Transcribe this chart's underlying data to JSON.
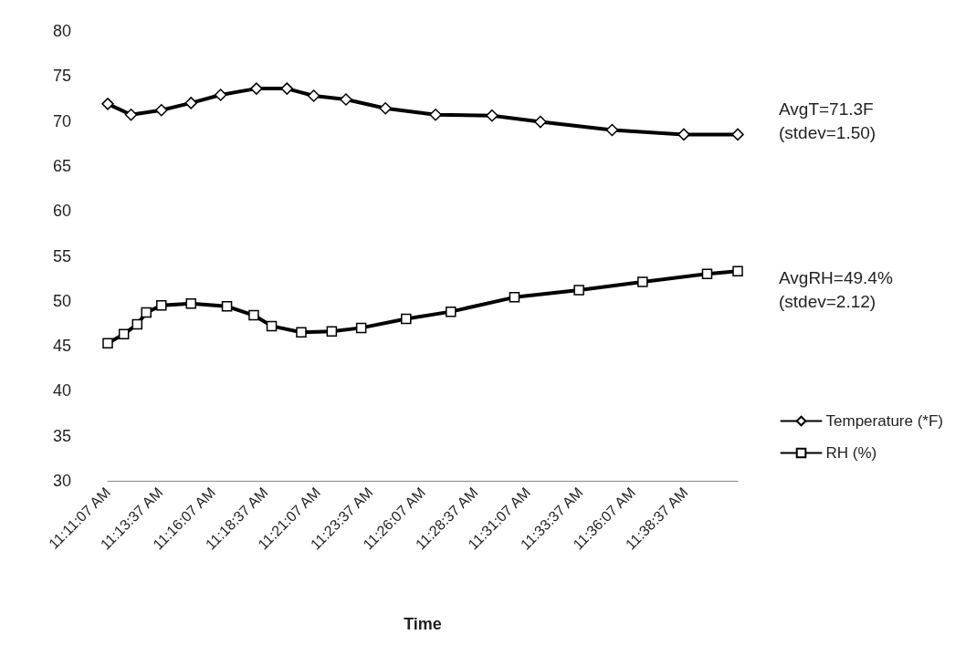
{
  "chart_data": {
    "type": "line",
    "xlabel": "Time",
    "xlim": [
      11.1853,
      11.6853
    ],
    "xticks": [
      {
        "value": 11.1853,
        "label": "11:11:07 AM"
      },
      {
        "value": 11.2269,
        "label": "11:13:37 AM"
      },
      {
        "value": 11.2686,
        "label": "11:16:07 AM"
      },
      {
        "value": 11.3103,
        "label": "11:18:37 AM"
      },
      {
        "value": 11.3519,
        "label": "11:21:07 AM"
      },
      {
        "value": 11.3936,
        "label": "11:23:37 AM"
      },
      {
        "value": 11.4353,
        "label": "11:26:07 AM"
      },
      {
        "value": 11.4769,
        "label": "11:28:37 AM"
      },
      {
        "value": 11.5186,
        "label": "11:31:07 AM"
      },
      {
        "value": 11.5603,
        "label": "11:33:37 AM"
      },
      {
        "value": 11.6019,
        "label": "11:36:07 AM"
      },
      {
        "value": 11.6436,
        "label": "11:38:37 AM"
      }
    ],
    "ylim": [
      30,
      80
    ],
    "yticks": [
      30,
      35,
      40,
      45,
      50,
      55,
      60,
      65,
      70,
      75,
      80
    ],
    "grid": false,
    "legend": "right",
    "line_style": "solid",
    "series": [
      {
        "name": "Temperature (*F)",
        "color": "#000000",
        "marker": "diamond",
        "x": [
          11.1853,
          11.2038,
          11.2279,
          11.2514,
          11.2749,
          11.3033,
          11.3275,
          11.3488,
          11.3744,
          11.4057,
          11.4455,
          11.4903,
          11.5287,
          11.5856,
          11.6425,
          11.6853
        ],
        "values": [
          71.9,
          70.7,
          71.2,
          72.0,
          72.9,
          73.6,
          73.6,
          72.8,
          72.4,
          71.4,
          70.7,
          70.6,
          69.9,
          69.0,
          68.5,
          68.5
        ]
      },
      {
        "name": "RH (%)",
        "color": "#000000",
        "marker": "square",
        "x": [
          11.1853,
          11.1981,
          11.2087,
          11.2159,
          11.2279,
          11.2514,
          11.2799,
          11.3012,
          11.3154,
          11.3389,
          11.3631,
          11.3865,
          11.4221,
          11.4576,
          11.5081,
          11.5593,
          11.6098,
          11.661,
          11.6853
        ],
        "values": [
          45.3,
          46.3,
          47.4,
          48.7,
          49.5,
          49.7,
          49.4,
          48.4,
          47.2,
          46.5,
          46.6,
          47.0,
          48.0,
          48.8,
          50.4,
          51.2,
          52.1,
          53.0,
          53.3
        ]
      }
    ],
    "annotations": [
      "AvgT=71.3F\n(stdev=1.50)",
      "AvgRH=49.4%\n(stdev=2.12)"
    ]
  }
}
